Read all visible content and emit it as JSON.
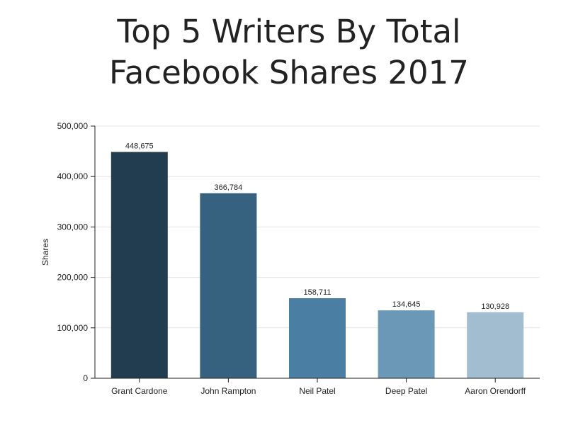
{
  "chart_data": {
    "type": "bar",
    "title_lines": [
      "Top 5 Writers By Total",
      "Facebook Shares 2017"
    ],
    "xlabel": "",
    "ylabel": "Shares",
    "ylim": [
      0,
      500000
    ],
    "yticks": [
      0,
      100000,
      200000,
      300000,
      400000,
      500000
    ],
    "ytick_labels": [
      "0",
      "100,000",
      "200,000",
      "300,000",
      "400,000",
      "500,000"
    ],
    "grid": true,
    "categories": [
      "Grant Cardone",
      "John Rampton",
      "Neil Patel",
      "Deep Patel",
      "Aaron Orendorff"
    ],
    "values": [
      448675,
      366784,
      158711,
      134645,
      130928
    ],
    "value_labels": [
      "448,675",
      "366,784",
      "158,711",
      "134,645",
      "130,928"
    ],
    "colors": [
      "#233d50",
      "#36627f",
      "#4a7fa3",
      "#6b98b6",
      "#a2bcd0"
    ]
  }
}
